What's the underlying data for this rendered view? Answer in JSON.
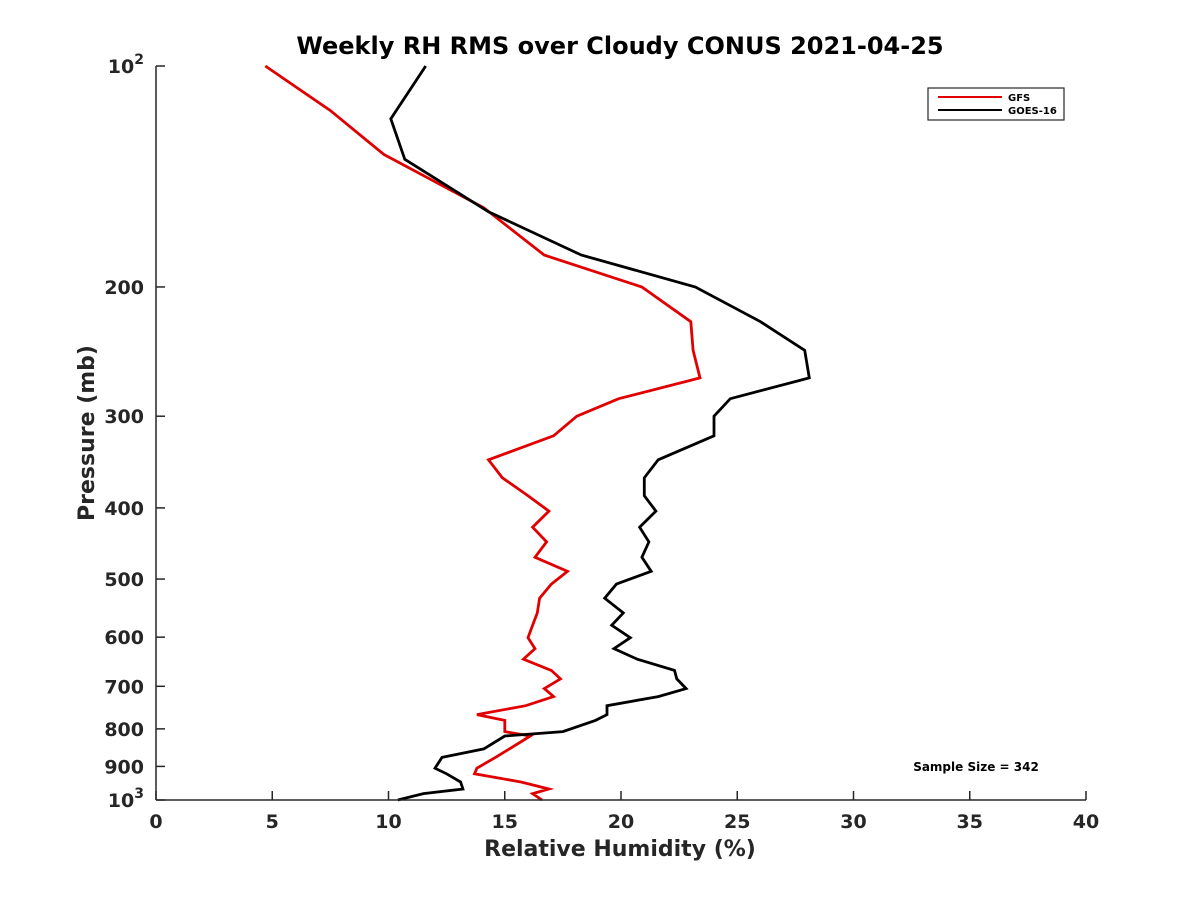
{
  "chart_data": {
    "type": "line",
    "title": "Weekly RH RMS over Cloudy CONUS 2021-04-25",
    "xlabel": "Relative Humidity (%)",
    "ylabel": "Pressure (mb)",
    "xlim": [
      0,
      40
    ],
    "ylim": [
      100,
      1000
    ],
    "y_scale": "log",
    "y_reversed": true,
    "grid": false,
    "legend_position": "top-right",
    "x_ticks": [
      0,
      5,
      10,
      15,
      20,
      25,
      30,
      35,
      40
    ],
    "x_tick_labels": [
      "0",
      "5",
      "10",
      "15",
      "20",
      "25",
      "30",
      "35",
      "40"
    ],
    "y_ticks": [
      {
        "value": 100,
        "base": "10",
        "exp": "2"
      },
      {
        "value": 200,
        "label": "200"
      },
      {
        "value": 300,
        "label": "300"
      },
      {
        "value": 400,
        "label": "400"
      },
      {
        "value": 500,
        "label": "500"
      },
      {
        "value": 600,
        "label": "600"
      },
      {
        "value": 700,
        "label": "700"
      },
      {
        "value": 800,
        "label": "800"
      },
      {
        "value": 900,
        "label": "900"
      },
      {
        "value": 1000,
        "base": "10",
        "exp": "3"
      }
    ],
    "annotation": "Sample Size = 342",
    "series": [
      {
        "name": "GFS",
        "color": "#e00000",
        "points": [
          [
            4.7,
            100
          ],
          [
            7.5,
            115
          ],
          [
            9.8,
            132
          ],
          [
            14.1,
            156
          ],
          [
            16.7,
            181
          ],
          [
            20.9,
            200
          ],
          [
            23.0,
            223
          ],
          [
            23.1,
            244
          ],
          [
            23.4,
            266
          ],
          [
            19.9,
            284
          ],
          [
            18.1,
            300
          ],
          [
            17.1,
            319
          ],
          [
            14.3,
            344
          ],
          [
            14.9,
            364
          ],
          [
            16.0,
            385
          ],
          [
            16.9,
            404
          ],
          [
            16.2,
            425
          ],
          [
            16.8,
            445
          ],
          [
            16.3,
            467
          ],
          [
            17.7,
            488
          ],
          [
            17.0,
            508
          ],
          [
            16.5,
            531
          ],
          [
            16.4,
            556
          ],
          [
            16.2,
            578
          ],
          [
            16.0,
            601
          ],
          [
            16.3,
            622
          ],
          [
            15.8,
            643
          ],
          [
            17.0,
            666
          ],
          [
            17.4,
            684
          ],
          [
            16.7,
            705
          ],
          [
            17.1,
            723
          ],
          [
            15.9,
            744
          ],
          [
            13.8,
            765
          ],
          [
            15.0,
            779
          ],
          [
            15.0,
            807
          ],
          [
            16.1,
            818
          ],
          [
            15.2,
            852
          ],
          [
            14.6,
            875
          ],
          [
            13.8,
            905
          ],
          [
            13.7,
            921
          ],
          [
            15.7,
            945
          ],
          [
            16.9,
            966
          ],
          [
            16.2,
            980
          ],
          [
            16.6,
            1000
          ]
        ]
      },
      {
        "name": "GOES-16",
        "color": "#000000",
        "points": [
          [
            11.6,
            100
          ],
          [
            10.1,
            118
          ],
          [
            10.7,
            134
          ],
          [
            14.3,
            158
          ],
          [
            18.3,
            181
          ],
          [
            23.2,
            200
          ],
          [
            26.0,
            223
          ],
          [
            27.9,
            244
          ],
          [
            28.1,
            266
          ],
          [
            24.7,
            284
          ],
          [
            24.0,
            300
          ],
          [
            24.0,
            319
          ],
          [
            21.6,
            344
          ],
          [
            21.0,
            364
          ],
          [
            21.0,
            385
          ],
          [
            21.5,
            404
          ],
          [
            20.8,
            425
          ],
          [
            21.2,
            445
          ],
          [
            20.9,
            467
          ],
          [
            21.3,
            488
          ],
          [
            19.8,
            508
          ],
          [
            19.3,
            531
          ],
          [
            20.1,
            556
          ],
          [
            19.6,
            578
          ],
          [
            20.4,
            601
          ],
          [
            19.7,
            622
          ],
          [
            20.7,
            643
          ],
          [
            22.3,
            666
          ],
          [
            22.4,
            684
          ],
          [
            22.8,
            705
          ],
          [
            21.6,
            723
          ],
          [
            19.4,
            744
          ],
          [
            19.4,
            765
          ],
          [
            18.9,
            779
          ],
          [
            17.5,
            807
          ],
          [
            15.0,
            818
          ],
          [
            14.1,
            852
          ],
          [
            12.3,
            875
          ],
          [
            12.0,
            905
          ],
          [
            12.5,
            921
          ],
          [
            13.1,
            945
          ],
          [
            13.2,
            966
          ],
          [
            11.5,
            980
          ],
          [
            10.4,
            1000
          ]
        ]
      }
    ]
  }
}
